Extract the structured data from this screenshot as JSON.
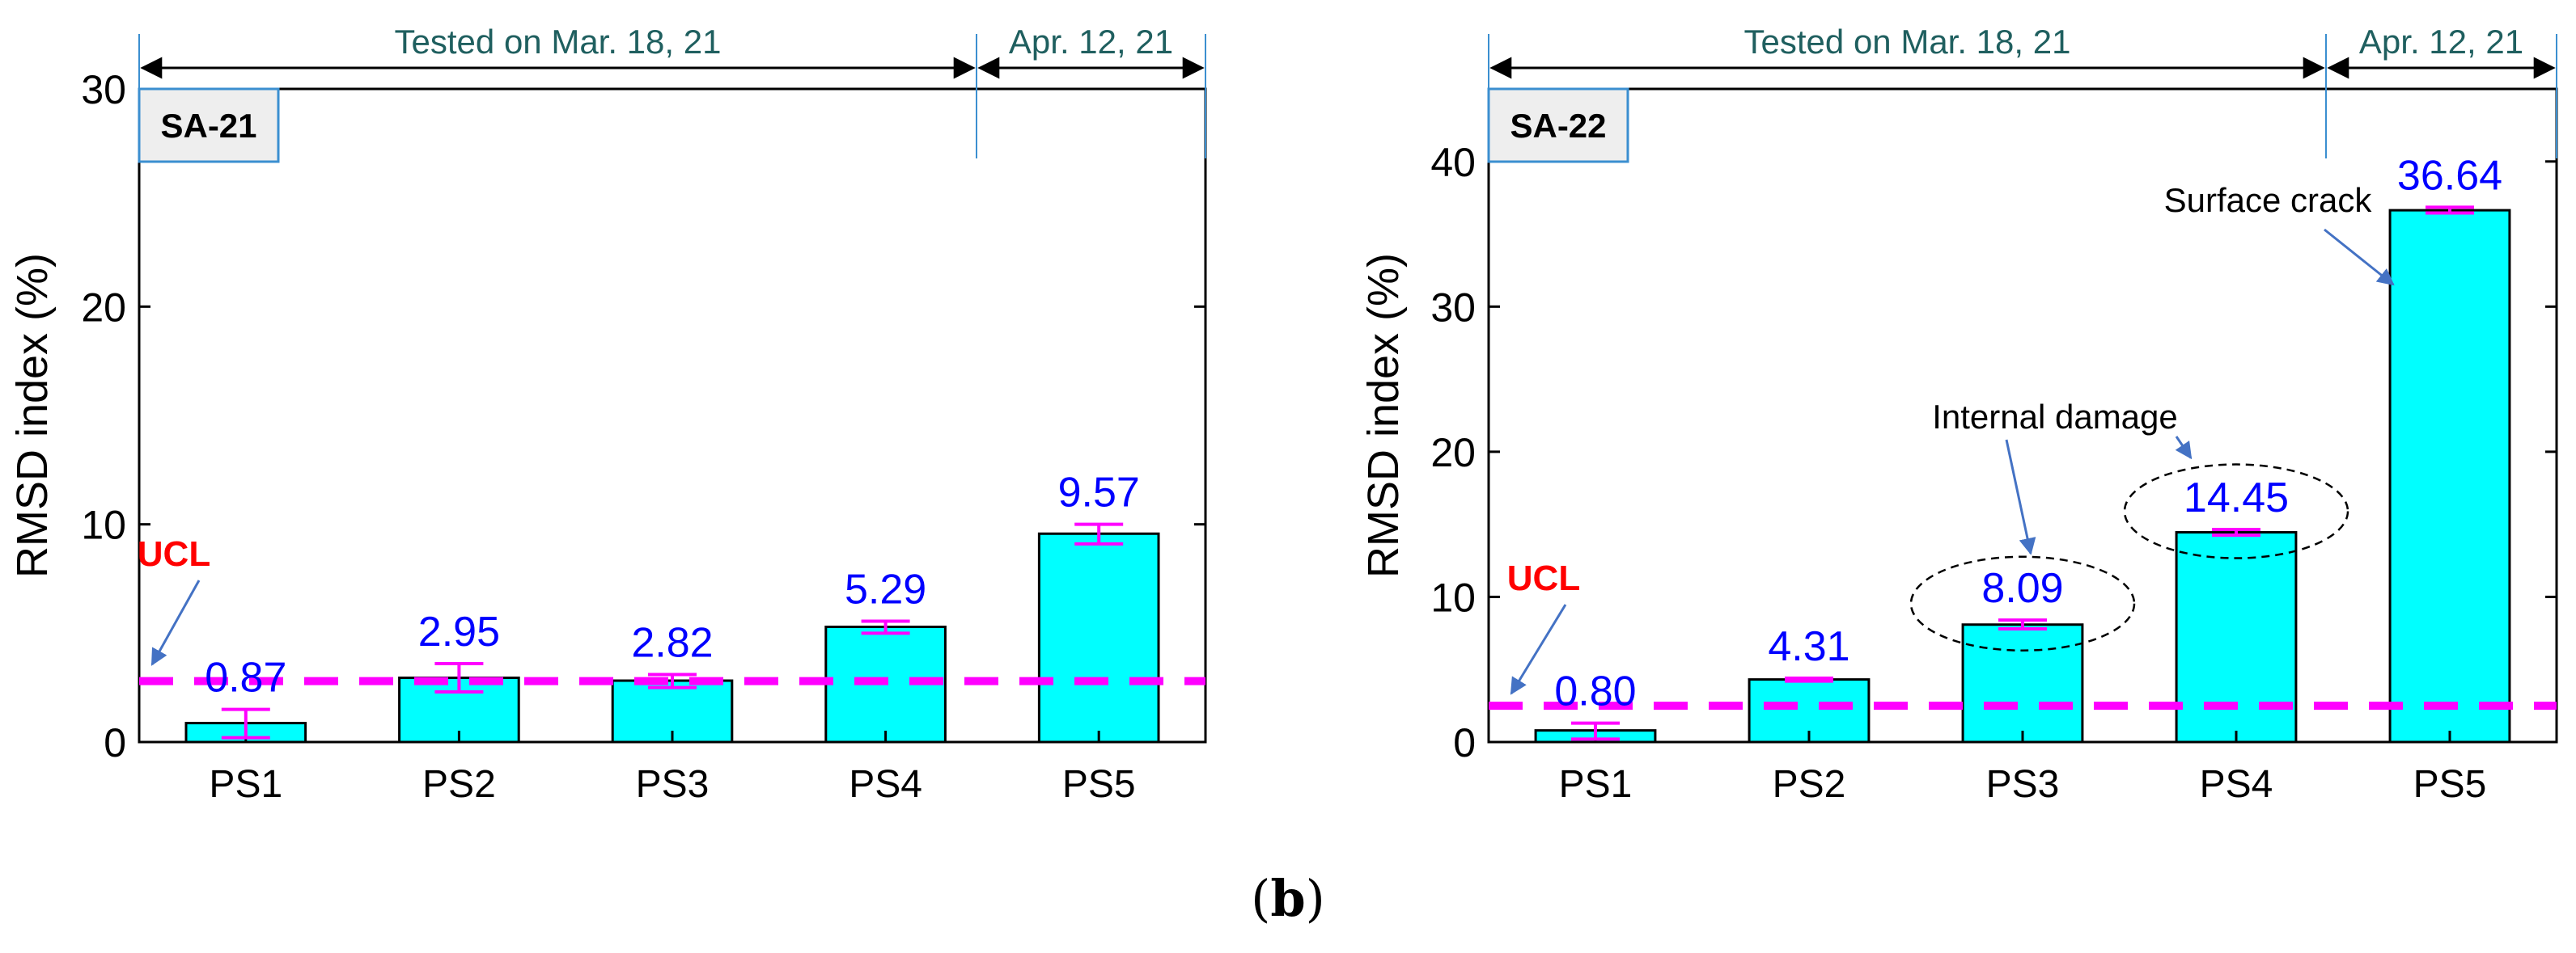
{
  "figure_label": {
    "open": "(",
    "letter": "b",
    "close": ")"
  },
  "colors": {
    "bar_fill": "#00ffff",
    "bar_stroke": "#000000",
    "value_label": "#0000ff",
    "ucl_line": "#ff00ff",
    "ucl_text": "#ff0000",
    "error_bar": "#ff00ff",
    "phase_text": "#1f5f5f",
    "panel_border": "#3b8fd0",
    "panel_fill": "#eeeeee",
    "arrow": "#4472c4"
  },
  "chart_data": [
    {
      "type": "bar",
      "panel": "SA-21",
      "ylabel": "RMSD index (%)",
      "categories": [
        "PS1",
        "PS2",
        "PS3",
        "PS4",
        "PS5"
      ],
      "values": [
        0.87,
        2.95,
        2.82,
        5.29,
        9.57
      ],
      "value_labels": [
        "0.87",
        "2.95",
        "2.82",
        "5.29",
        "9.57"
      ],
      "error_low": [
        0.2,
        2.3,
        2.5,
        5.0,
        9.1
      ],
      "error_high": [
        1.5,
        3.6,
        3.1,
        5.55,
        10.0
      ],
      "ylim": [
        0,
        30
      ],
      "yticks": [
        0,
        10,
        20,
        30
      ],
      "ucl": {
        "label": "UCL",
        "value": 2.8
      },
      "phases": [
        {
          "label": "Tested on Mar. 18, 21",
          "from": "PS1",
          "to": "PS4"
        },
        {
          "label": "Apr. 12, 21",
          "from": "PS5",
          "to": "PS5"
        }
      ],
      "annotations": []
    },
    {
      "type": "bar",
      "panel": "SA-22",
      "ylabel": "RMSD index (%)",
      "categories": [
        "PS1",
        "PS2",
        "PS3",
        "PS4",
        "PS5"
      ],
      "values": [
        0.8,
        4.31,
        8.09,
        14.45,
        36.64
      ],
      "value_labels": [
        "0.80",
        "4.31",
        "8.09",
        "14.45",
        "36.64"
      ],
      "error_low": [
        0.2,
        4.2,
        7.8,
        14.25,
        36.45
      ],
      "error_high": [
        1.3,
        4.4,
        8.4,
        14.65,
        36.85
      ],
      "ylim": [
        0,
        45
      ],
      "yticks": [
        0,
        10,
        20,
        30,
        40
      ],
      "ucl": {
        "label": "UCL",
        "value": 2.5
      },
      "phases": [
        {
          "label": "Tested on Mar. 18, 21",
          "from": "PS1",
          "to": "PS4"
        },
        {
          "label": "Apr. 12, 21",
          "from": "PS5",
          "to": "PS5"
        }
      ],
      "annotations": [
        {
          "text": "Internal damage",
          "targets": [
            "PS3",
            "PS4"
          ]
        },
        {
          "text": "Surface crack",
          "targets": [
            "PS5"
          ]
        }
      ]
    }
  ]
}
